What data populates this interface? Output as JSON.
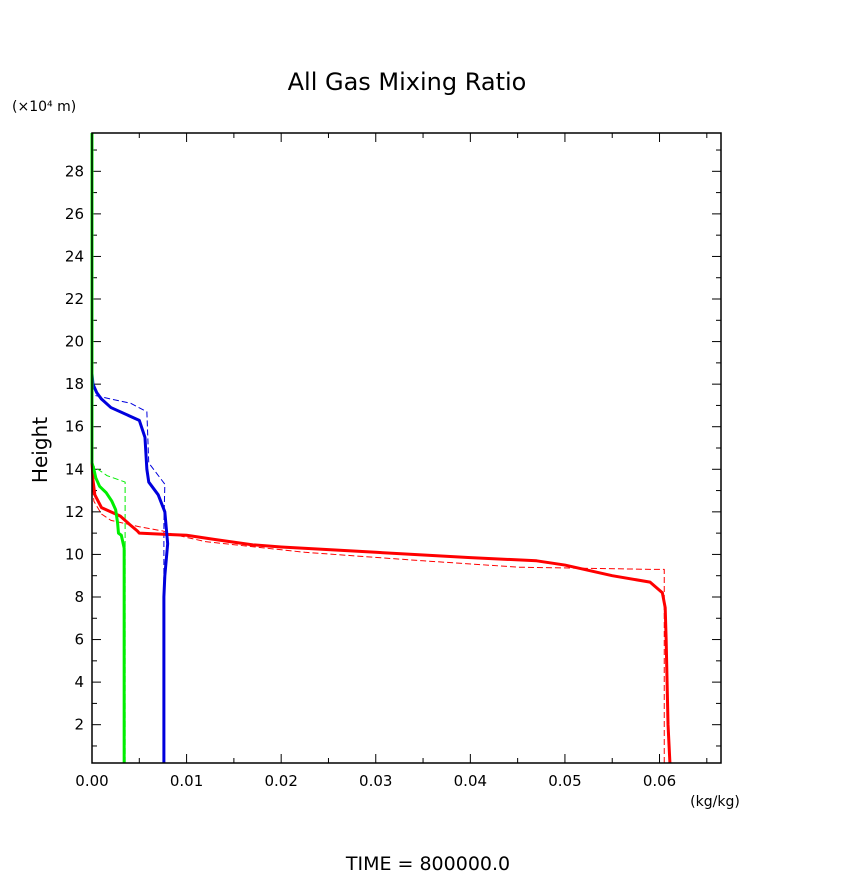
{
  "chart_data": {
    "type": "line",
    "title": "All Gas Mixing Ratio",
    "xlabel": "(kg/kg)",
    "ylabel": "Height",
    "yunit": "(×10⁴ m)",
    "footer": "TIME = 800000.0",
    "xlim": [
      0,
      0.0665
    ],
    "ylim": [
      0.2,
      29.8
    ],
    "xticks": [
      0,
      0.01,
      0.02,
      0.03,
      0.04,
      0.05,
      0.06
    ],
    "xtick_labels": [
      "0.00",
      "0.01",
      "0.02",
      "0.03",
      "0.04",
      "0.05",
      "0.06"
    ],
    "yticks": [
      2,
      4,
      6,
      8,
      10,
      12,
      14,
      16,
      18,
      20,
      22,
      24,
      26,
      28
    ],
    "ytick_labels": [
      "2",
      "4",
      "6",
      "8",
      "10",
      "12",
      "14",
      "16",
      "18",
      "20",
      "22",
      "24",
      "26",
      "28"
    ],
    "grid": false,
    "colors": {
      "red": "#ff0000",
      "blue": "#0000dd",
      "green": "#00ee00"
    },
    "series": [
      {
        "color": "red",
        "style": "solid",
        "points": [
          [
            0.0611,
            0.2
          ],
          [
            0.0609,
            2
          ],
          [
            0.0608,
            4
          ],
          [
            0.0607,
            6
          ],
          [
            0.0606,
            7.5
          ],
          [
            0.0603,
            8.2
          ],
          [
            0.059,
            8.7
          ],
          [
            0.055,
            9.0
          ],
          [
            0.053,
            9.2
          ],
          [
            0.05,
            9.5
          ],
          [
            0.047,
            9.7
          ],
          [
            0.04,
            9.85
          ],
          [
            0.03,
            10.1
          ],
          [
            0.02,
            10.35
          ],
          [
            0.017,
            10.45
          ],
          [
            0.013,
            10.7
          ],
          [
            0.01,
            10.9
          ],
          [
            0.0075,
            10.95
          ],
          [
            0.005,
            11.0
          ],
          [
            0.0048,
            11.1
          ],
          [
            0.004,
            11.4
          ],
          [
            0.003,
            11.8
          ],
          [
            0.002,
            12.0
          ],
          [
            0.001,
            12.2
          ],
          [
            0.0003,
            12.8
          ],
          [
            0.0001,
            13.5
          ],
          [
            5e-05,
            14
          ],
          [
            0,
            14.3
          ],
          [
            0,
            29.8
          ]
        ]
      },
      {
        "color": "red",
        "style": "dashed",
        "points": [
          [
            0.0605,
            0.2
          ],
          [
            0.0605,
            9.3
          ],
          [
            0.059,
            9.3
          ],
          [
            0.0451,
            9.4
          ],
          [
            0.035,
            9.7
          ],
          [
            0.0225,
            10.1
          ],
          [
            0.012,
            10.6
          ],
          [
            0.0085,
            10.95
          ],
          [
            0.0075,
            11.1
          ],
          [
            0.005,
            11.3
          ],
          [
            0.002,
            11.6
          ],
          [
            0.001,
            11.9
          ],
          [
            0.0002,
            12.5
          ],
          [
            0,
            13.5
          ],
          [
            0,
            29.8
          ]
        ]
      },
      {
        "color": "blue",
        "style": "solid",
        "points": [
          [
            0.0076,
            0.2
          ],
          [
            0.0076,
            2
          ],
          [
            0.0076,
            4
          ],
          [
            0.0076,
            6
          ],
          [
            0.0076,
            8
          ],
          [
            0.0077,
            9
          ],
          [
            0.0079,
            10
          ],
          [
            0.008,
            10.5
          ],
          [
            0.0079,
            11
          ],
          [
            0.0077,
            12
          ],
          [
            0.007,
            12.8
          ],
          [
            0.006,
            13.4
          ],
          [
            0.0058,
            14
          ],
          [
            0.0056,
            15.5
          ],
          [
            0.005,
            16.3
          ],
          [
            0.004,
            16.5
          ],
          [
            0.002,
            16.9
          ],
          [
            0.001,
            17.3
          ],
          [
            0.0005,
            17.6
          ],
          [
            0.0001,
            18.0
          ],
          [
            0,
            18.5
          ],
          [
            0,
            29.8
          ]
        ]
      },
      {
        "color": "blue",
        "style": "dashed",
        "points": [
          [
            0.0076,
            0.2
          ],
          [
            0.0076,
            11.4
          ],
          [
            0.0077,
            13.3
          ],
          [
            0.006,
            14.3
          ],
          [
            0.0058,
            16.7
          ],
          [
            0.0041,
            17.1
          ],
          [
            0.002,
            17.3
          ],
          [
            0,
            17.5
          ],
          [
            0,
            29.8
          ]
        ]
      },
      {
        "color": "green",
        "style": "solid",
        "points": [
          [
            0.0034,
            0.2
          ],
          [
            0.0034,
            2
          ],
          [
            0.0034,
            4
          ],
          [
            0.0034,
            6
          ],
          [
            0.0034,
            8
          ],
          [
            0.0034,
            9.5
          ],
          [
            0.0034,
            10.3
          ],
          [
            0.0031,
            10.9
          ],
          [
            0.0028,
            11.0
          ],
          [
            0.0027,
            11.5
          ],
          [
            0.0026,
            11.8
          ],
          [
            0.0025,
            12.1
          ],
          [
            0.0021,
            12.5
          ],
          [
            0.0015,
            12.9
          ],
          [
            0.0008,
            13.2
          ],
          [
            0.0004,
            13.6
          ],
          [
            0.0002,
            14.0
          ],
          [
            0,
            14.3
          ],
          [
            0,
            29.8
          ]
        ]
      },
      {
        "color": "green",
        "style": "dashed",
        "points": [
          [
            0.0035,
            0.2
          ],
          [
            0.0035,
            11.6
          ],
          [
            0.0035,
            13.4
          ],
          [
            0.0016,
            13.7
          ],
          [
            0.0003,
            14.1
          ],
          [
            0,
            14.2
          ],
          [
            0,
            29.8
          ]
        ]
      }
    ]
  }
}
